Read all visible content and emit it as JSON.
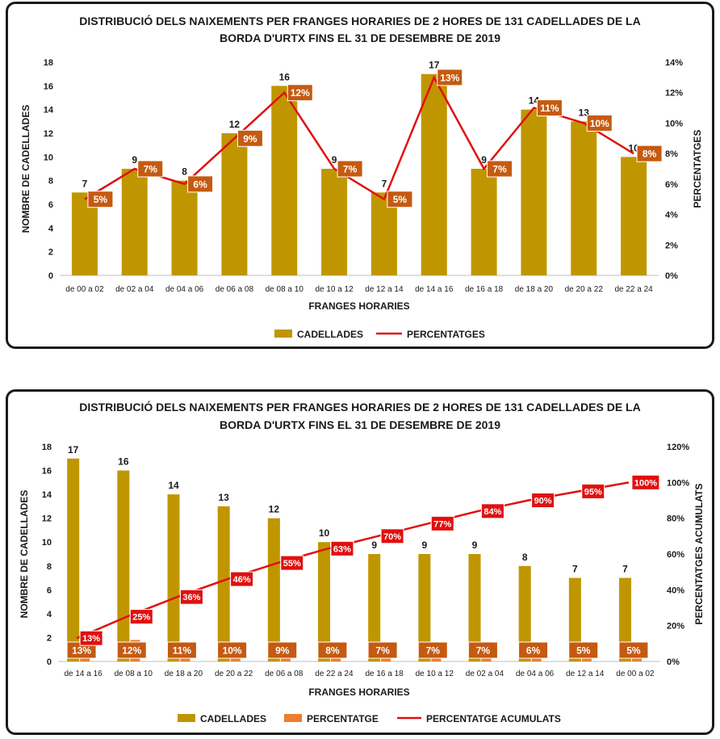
{
  "colors": {
    "bar": "#c09600",
    "line": "#e01010",
    "pct_box": "#c55a11",
    "pct_box2": "#ed7d31",
    "cum_box": "#e01010"
  },
  "chart_data": [
    {
      "type": "bar",
      "title_lines": [
        "DISTRIBUCIÓ DELS NAIXEMENTS PER FRANGES HORARIES DE 2 HORES DE 131 CADELLADES DE LA",
        "BORDA D'URTX  FINS EL 31 DE DESEMBRE DE 2019"
      ],
      "xlabel": "FRANGES HORARIES",
      "ylabel": "NOMBRE DE CADELLADES",
      "y2label": "PERCENTATGES",
      "ylim": [
        0,
        18
      ],
      "yticks": [
        0,
        2,
        4,
        6,
        8,
        10,
        12,
        14,
        16,
        18
      ],
      "y2lim": [
        0,
        14
      ],
      "y2ticks": [
        "0%",
        "2%",
        "4%",
        "6%",
        "8%",
        "10%",
        "12%",
        "14%"
      ],
      "categories": [
        "de 00 a 02",
        "de 02 a 04",
        "de 04 a 06",
        "de 06 a 08",
        "de 08 a 10",
        "de 10 a 12",
        "de 12 a 14",
        "de 14 a 16",
        "de 16 a 18",
        "de 18 a 20",
        "de 20 a 22",
        "de 22 a 24"
      ],
      "series": [
        {
          "name": "CADELLADES",
          "kind": "bar",
          "axis": "left",
          "values": [
            7,
            9,
            8,
            12,
            16,
            9,
            7,
            17,
            9,
            14,
            13,
            10
          ],
          "labels": [
            "7",
            "9",
            "8",
            "12",
            "16",
            "9",
            "7",
            "17",
            "9",
            "14",
            "13",
            "10"
          ]
        },
        {
          "name": "PERCENTATGES",
          "kind": "line",
          "axis": "right",
          "values": [
            5,
            7,
            6,
            9,
            12,
            7,
            5,
            13,
            7,
            11,
            10,
            8
          ],
          "labels": [
            "5%",
            "7%",
            "6%",
            "9%",
            "12%",
            "7%",
            "5%",
            "13%",
            "7%",
            "11%",
            "10%",
            "8%"
          ]
        }
      ],
      "legend": "bottom"
    },
    {
      "type": "bar",
      "title_lines": [
        "DISTRIBUCIÓ DELS NAIXEMENTS PER FRANGES HORARIES DE 2 HORES DE 131 CADELLADES DE LA",
        "BORDA D'URTX FINS EL 31 DE DESEMBRE DE 2019"
      ],
      "xlabel": "FRANGES HORARIES",
      "ylabel": "NOMBRE DE CADELLADES",
      "y2label": "PERCENTATGES ACUMULATS",
      "ylim": [
        0,
        18
      ],
      "yticks": [
        0,
        2,
        4,
        6,
        8,
        10,
        12,
        14,
        16,
        18
      ],
      "y2lim": [
        0,
        120
      ],
      "y2ticks": [
        "0%",
        "20%",
        "40%",
        "60%",
        "80%",
        "100%",
        "120%"
      ],
      "categories": [
        "de 14 a 16",
        "de 08 a 10",
        "de 18 a 20",
        "de 20 a 22",
        "de 06 a 08",
        "de 22 a 24",
        "de 16 a 18",
        "de 10 a 12",
        "de 02 a 04",
        "de 04 a 06",
        "de 12 a 14",
        "de 00 a 02"
      ],
      "series": [
        {
          "name": "CADELLADES",
          "kind": "bar",
          "axis": "left",
          "values": [
            17,
            16,
            14,
            13,
            12,
            10,
            9,
            9,
            9,
            8,
            7,
            7
          ],
          "labels": [
            "17",
            "16",
            "14",
            "13",
            "12",
            "10",
            "9",
            "9",
            "9",
            "8",
            "7",
            "7"
          ]
        },
        {
          "name": "PERCENTATGE",
          "kind": "bar",
          "axis": "right",
          "values": [
            13,
            12,
            11,
            10,
            9,
            8,
            7,
            7,
            7,
            6,
            5,
            5
          ],
          "labels": [
            "13%",
            "12%",
            "11%",
            "10%",
            "9%",
            "8%",
            "7%",
            "7%",
            "7%",
            "6%",
            "5%",
            "5%"
          ]
        },
        {
          "name": "PERCENTATGE ACUMULATS",
          "kind": "line",
          "axis": "right",
          "values": [
            13,
            25,
            36,
            46,
            55,
            63,
            70,
            77,
            84,
            90,
            95,
            100
          ],
          "labels": [
            "13%",
            "25%",
            "36%",
            "46%",
            "55%",
            "63%",
            "70%",
            "77%",
            "84%",
            "90%",
            "95%",
            "100%"
          ]
        }
      ],
      "legend": "bottom"
    }
  ]
}
